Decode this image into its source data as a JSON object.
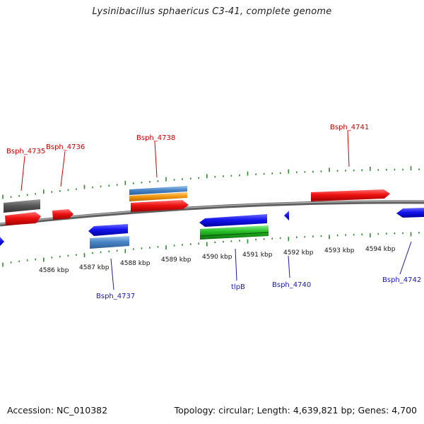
{
  "title": "Lysinibacillus sphaericus C3-41, complete genome",
  "footer": {
    "accession": "Accession: NC_010382",
    "summary": "Topology: circular; Length: 4,639,821 bp; Genes: 4,700"
  },
  "colors": {
    "backbone": "#808080",
    "forward_label": "#cc0000",
    "reverse_label": "#1a1ab3",
    "tick": "#2e8b2e",
    "red": "#ee1111",
    "blue": "#1111ee",
    "gray": "#5a5a5a",
    "steel": "#4a86c8",
    "orange": "#f59a11",
    "green": "#22bb22"
  },
  "scale": {
    "labels": [
      "4586 kbp",
      "4587 kbp",
      "4588 kbp",
      "4589 kbp",
      "4590 kbp",
      "4591 kbp",
      "4592 kbp",
      "4593 kbp",
      "4594 kbp"
    ]
  },
  "features": {
    "forward": [
      {
        "label": "Bsph_4735",
        "color": "red"
      },
      {
        "label": "Bsph_4736",
        "color": "red"
      },
      {
        "label": "Bsph_4738",
        "color": "red"
      },
      {
        "label": "Bsph_4741",
        "color": "red"
      }
    ],
    "reverse": [
      {
        "label": "Bsph_4737",
        "color": "blue"
      },
      {
        "label": "tlpB",
        "color": "blue"
      },
      {
        "label": "Bsph_4740",
        "color": "blue"
      },
      {
        "label": "Bsph_4742",
        "color": "blue"
      }
    ]
  }
}
